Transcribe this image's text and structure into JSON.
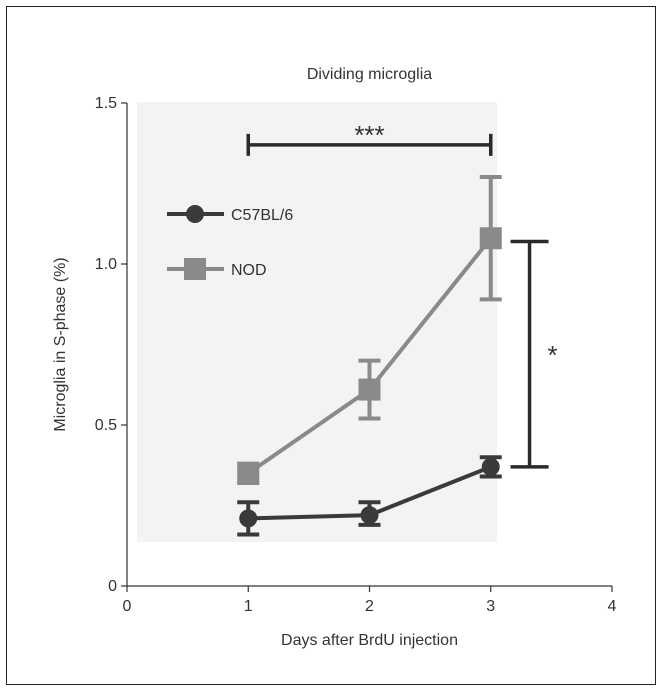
{
  "chart_data": {
    "type": "line",
    "title": "Dividing microglia",
    "xlabel": "Days after BrdU injection",
    "ylabel": "Microglia in S-phase (%)",
    "xlim": [
      0,
      4
    ],
    "ylim": [
      0,
      1.5
    ],
    "x_ticks": [
      "0",
      "1",
      "2",
      "3",
      "4"
    ],
    "y_ticks": [
      "0",
      "0.5",
      "1.0",
      "1.5"
    ],
    "grid": false,
    "legend_position": "upper-left",
    "series": [
      {
        "name": "C57BL/6",
        "marker": "circle",
        "color": "#3a3a3a",
        "x": [
          1,
          2,
          3
        ],
        "y": [
          0.21,
          0.22,
          0.37
        ],
        "err_low": [
          0.16,
          0.19,
          0.34
        ],
        "err_high": [
          0.26,
          0.26,
          0.4
        ]
      },
      {
        "name": "NOD",
        "marker": "square",
        "color": "#8a8a8a",
        "x": [
          1,
          2,
          3
        ],
        "y": [
          0.35,
          0.61,
          1.08
        ],
        "err_low": [
          0.32,
          0.52,
          0.89
        ],
        "err_high": [
          0.38,
          0.7,
          1.27
        ]
      }
    ],
    "annotations": [
      {
        "text": "***",
        "x_start": 1,
        "x_end": 3,
        "y": 1.37,
        "orientation": "horizontal"
      },
      {
        "text": "*",
        "x": 3.32,
        "y_start": 0.37,
        "y_end": 1.07,
        "orientation": "vertical"
      }
    ]
  }
}
